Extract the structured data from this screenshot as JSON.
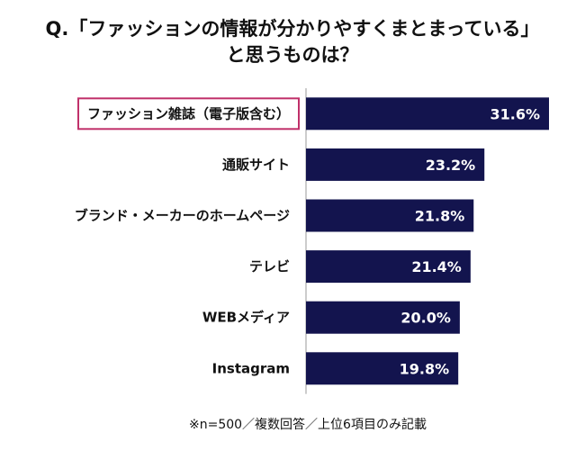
{
  "title_line1": "Q.「ファッションの情報が分かりやすくまとまっている」",
  "title_line2": "と思うものは？",
  "footnote": "※n=500／複数回答／上位6項目のみ記載",
  "colors": {
    "bar": "#13144e",
    "highlight_border": "#c0306a",
    "axis": "#999999"
  },
  "chart_data": {
    "type": "bar",
    "orientation": "horizontal",
    "categories": [
      "ファッション雑誌（電子版含む）",
      "通販サイト",
      "ブランド・メーカーのホームページ",
      "テレビ",
      "WEBメディア",
      "Instagram"
    ],
    "values": [
      31.6,
      23.2,
      21.8,
      21.4,
      20.0,
      19.8
    ],
    "value_labels": [
      "31.6%",
      "23.2%",
      "21.8%",
      "21.4%",
      "20.0%",
      "19.8%"
    ],
    "highlighted_category_index": 0,
    "title": "Q.「ファッションの情報が分かりやすくまとまっている」と思うものは？",
    "xlim": [
      0,
      35
    ],
    "grid": false,
    "legend": "none"
  }
}
